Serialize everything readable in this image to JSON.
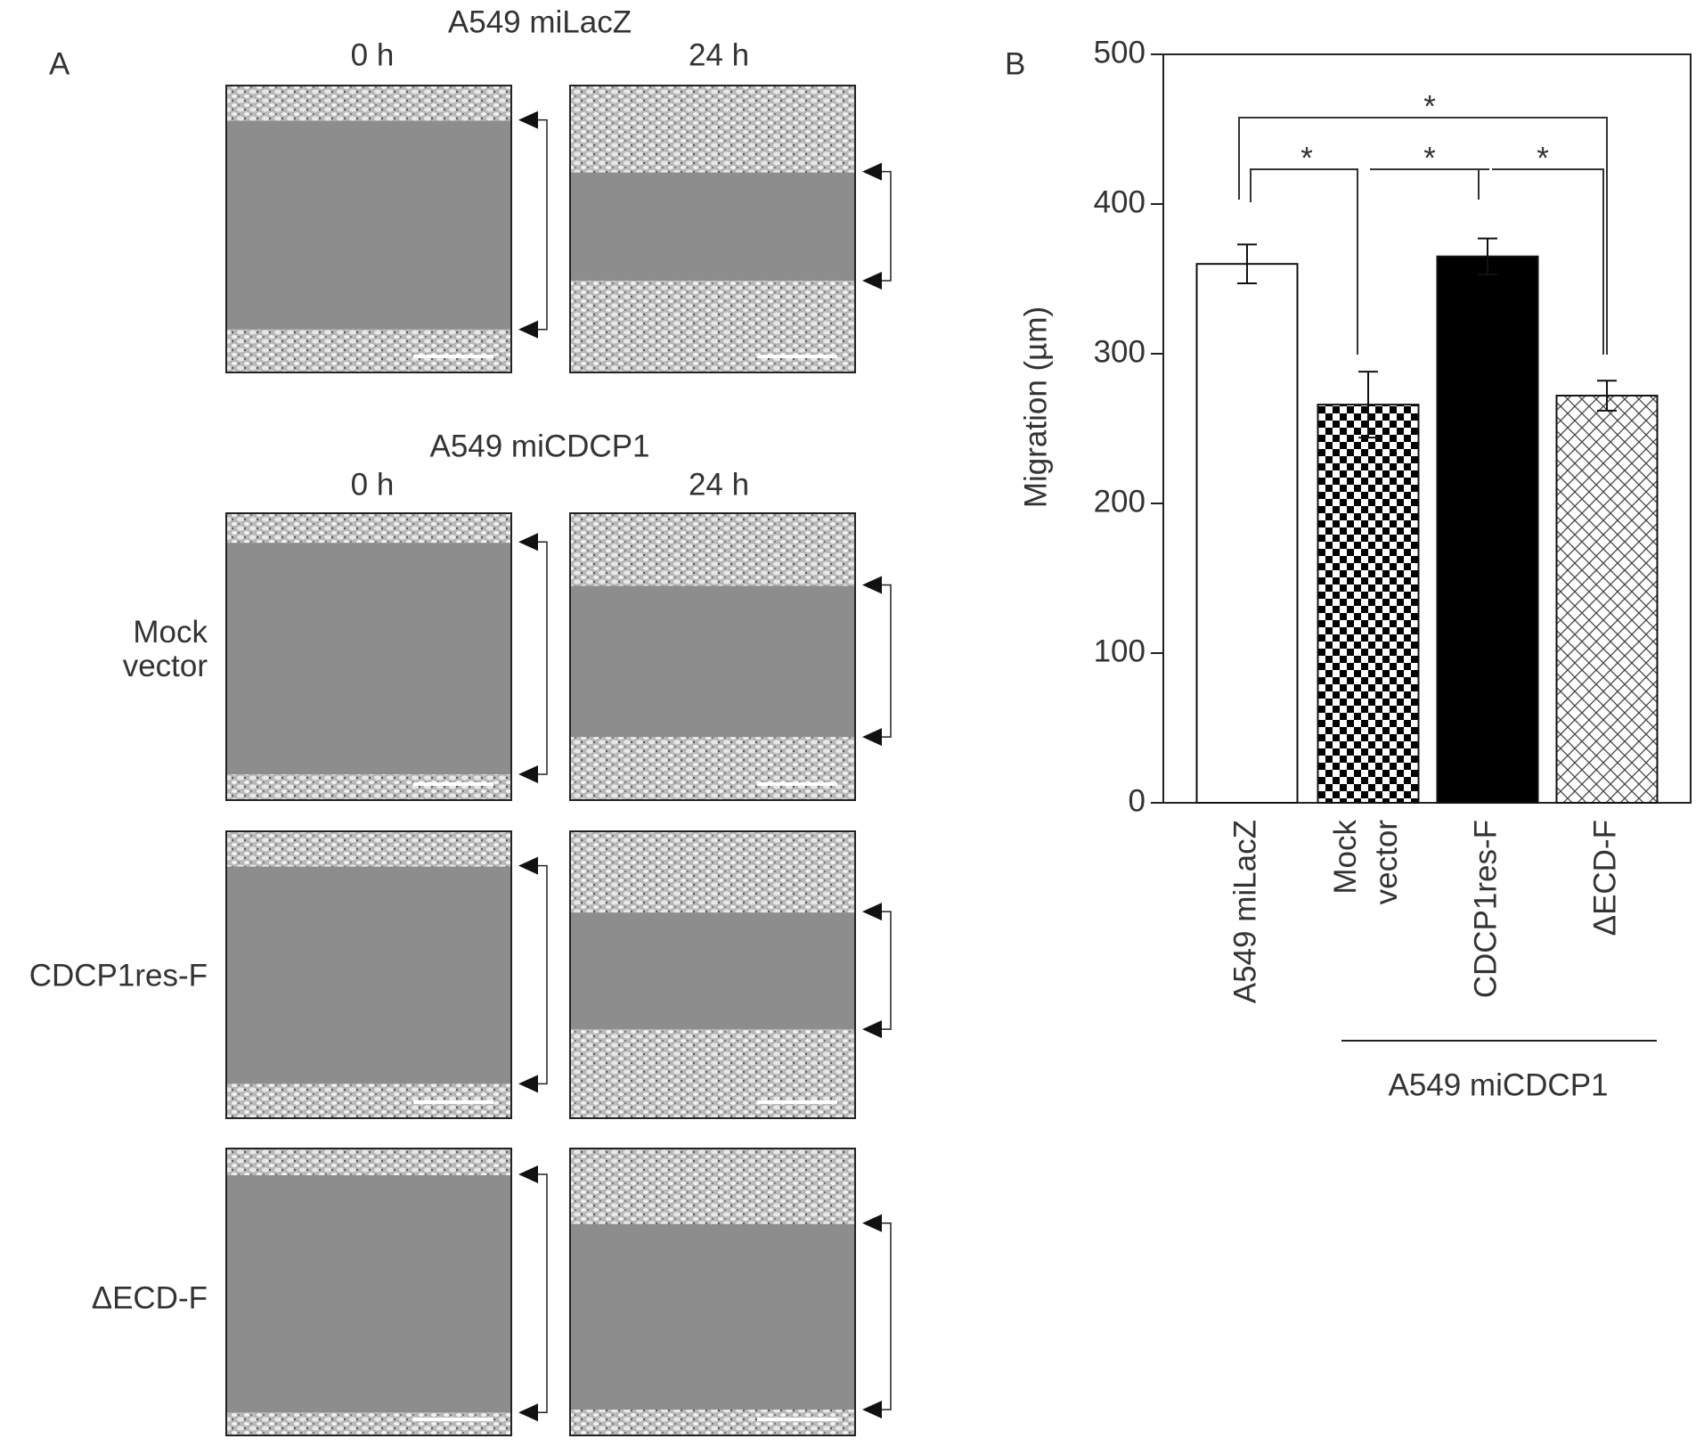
{
  "panel_a": {
    "label": "A",
    "groups": [
      {
        "title": "A549 miLacZ",
        "times": [
          "0 h",
          "24 h"
        ]
      },
      {
        "title": "A549 miCDCP1",
        "times": [
          "0 h",
          "24 h"
        ]
      }
    ],
    "row_labels": [
      "Mock vector",
      "CDCP1res-F",
      "ΔECD-F"
    ]
  },
  "chart_data": {
    "type": "bar",
    "panel_label": "B",
    "y_label": "Migration (µm)",
    "categories": [
      "A549 miLacZ",
      "Mock vector",
      "CDCP1res-F",
      "ΔECD-F"
    ],
    "values": [
      360,
      266,
      365,
      272
    ],
    "errors": [
      13,
      22,
      12,
      10
    ],
    "fills": [
      "#ffffff",
      "checker",
      "#000000",
      "crosshatch"
    ],
    "group_label": "A549 miCDCP1",
    "significance_labels": [
      "*",
      "*",
      "*",
      "*"
    ],
    "ylim": [
      0,
      500
    ],
    "yticks": [
      0,
      100,
      200,
      300,
      400,
      500
    ]
  }
}
